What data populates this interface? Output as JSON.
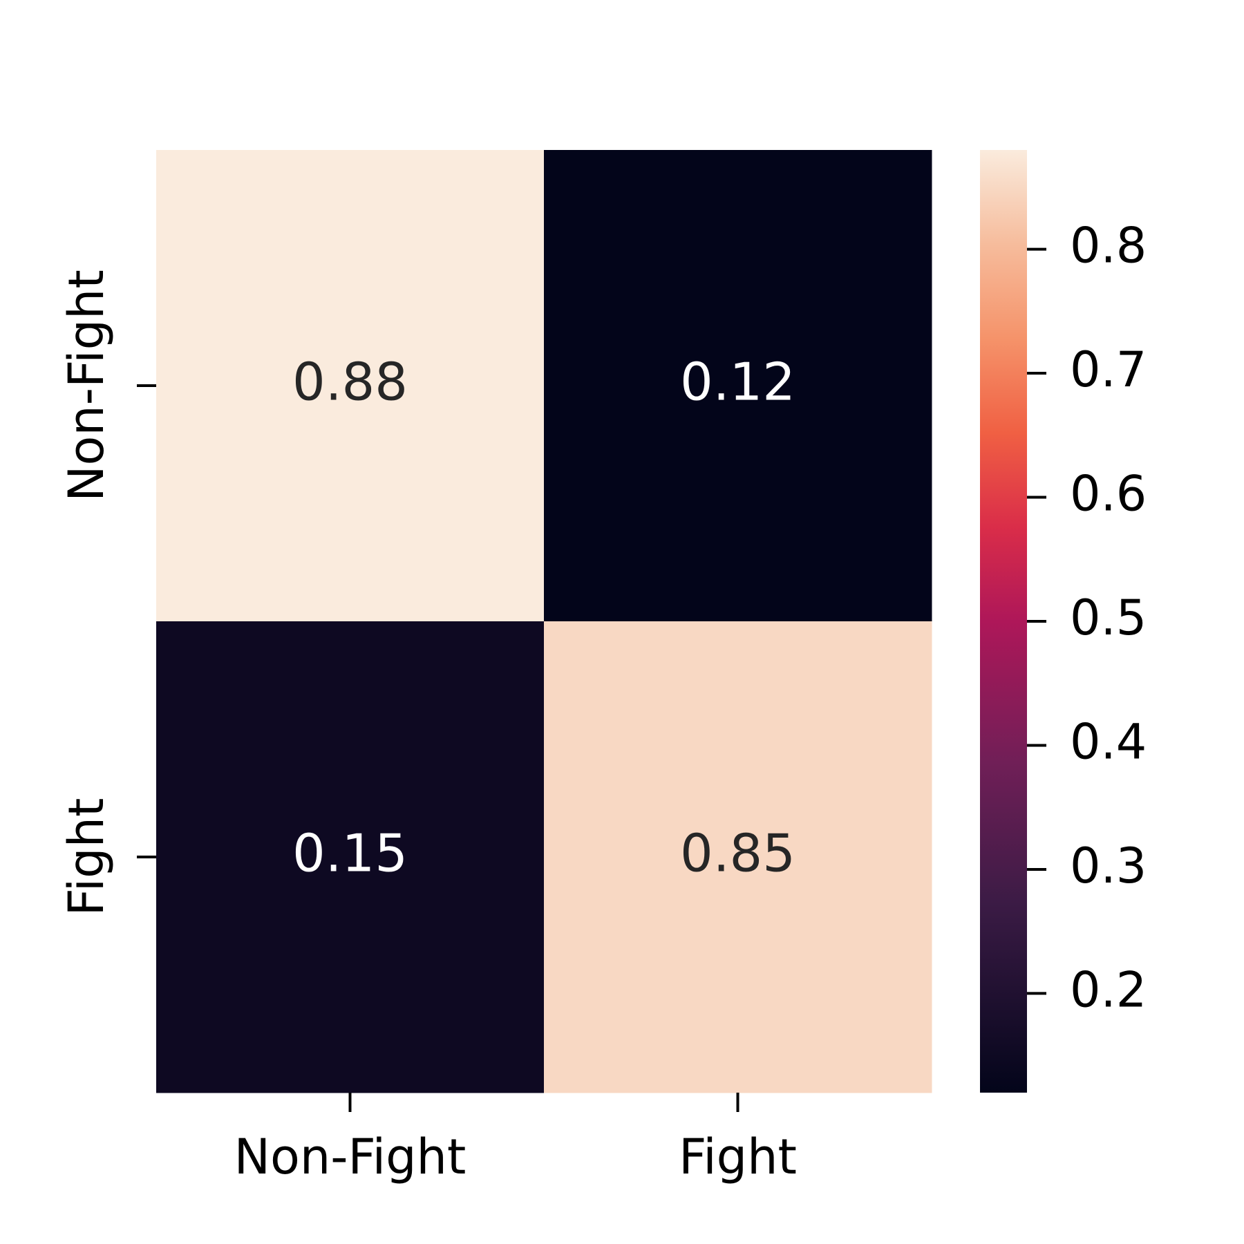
{
  "chart_data": {
    "type": "heatmap",
    "x_categories": [
      "Non-Fight",
      "Fight"
    ],
    "y_categories": [
      "Non-Fight",
      "Fight"
    ],
    "values": [
      [
        0.88,
        0.12
      ],
      [
        0.15,
        0.85
      ]
    ],
    "clim": [
      0.12,
      0.88
    ],
    "cticks": [
      0.2,
      0.3,
      0.4,
      0.5,
      0.6,
      0.7,
      0.8
    ],
    "colormap": [
      [
        0,
        "#03051a"
      ],
      [
        0.2,
        "#3b1b45"
      ],
      [
        0.35,
        "#701f57"
      ],
      [
        0.5,
        "#ae1759"
      ],
      [
        0.6,
        "#da2d49"
      ],
      [
        0.7,
        "#f06043"
      ],
      [
        0.8,
        "#f5936a"
      ],
      [
        0.9,
        "#f6bc9c"
      ],
      [
        1,
        "#faebdd"
      ]
    ]
  }
}
